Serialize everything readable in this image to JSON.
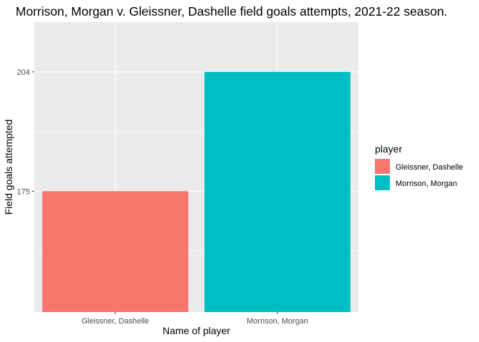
{
  "chart_data": {
    "type": "bar",
    "title": "Morrison, Morgan v. Gleissner, Dashelle field goals attempts, 2021-22 season.",
    "xlabel": "Name of player",
    "ylabel": "Field goals attempted",
    "categories": [
      "Gleissner, Dashelle",
      "Morrison, Morgan"
    ],
    "values": [
      175,
      204
    ],
    "colors": [
      "#F8766D",
      "#00BFC4"
    ],
    "yticks": [
      175,
      204
    ],
    "ylim": [
      145.6,
      216.1
    ],
    "grid": true,
    "panel_background": "#EBEBEB",
    "legend": {
      "title": "player",
      "position": "right",
      "entries": [
        {
          "label": "Gleissner, Dashelle",
          "color": "#F8766D"
        },
        {
          "label": "Morrison, Morgan",
          "color": "#00BFC4"
        }
      ]
    }
  }
}
